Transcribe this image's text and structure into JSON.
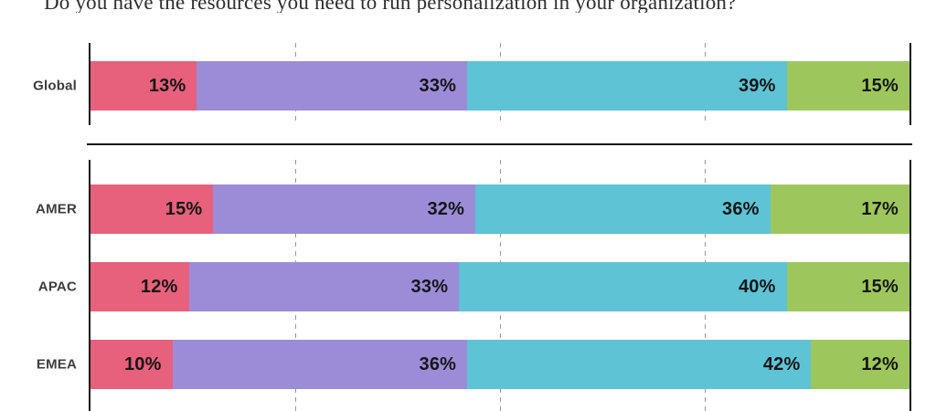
{
  "title": "Do you have the resources you need to run personalization in your organization?",
  "charts": [
    {
      "name": "global",
      "rows": [
        0
      ]
    },
    {
      "name": "regional",
      "rows": [
        1,
        2,
        3
      ]
    }
  ],
  "chart_data": {
    "type": "bar",
    "stacked": true,
    "orientation": "horizontal",
    "title": "Do you have the resources you need to run personalization in your organization?",
    "unit": "%",
    "xlim": [
      0,
      100
    ],
    "gridlines_percent": [
      25,
      50,
      75
    ],
    "gridline_style": "dashed",
    "legend": "none",
    "value_label_position": "inside-right",
    "axis_color": "#161616",
    "categories": [
      "Global",
      "AMER",
      "APAC",
      "EMEA"
    ],
    "series": [
      {
        "name": "pink",
        "color": "#E7617C",
        "values": [
          13,
          15,
          12,
          10
        ]
      },
      {
        "name": "purple",
        "color": "#9C8CD8",
        "values": [
          33,
          32,
          33,
          36
        ]
      },
      {
        "name": "teal",
        "color": "#5EC3D5",
        "values": [
          39,
          36,
          40,
          42
        ]
      },
      {
        "name": "green",
        "color": "#9DC75C",
        "values": [
          15,
          17,
          15,
          12
        ]
      }
    ]
  }
}
